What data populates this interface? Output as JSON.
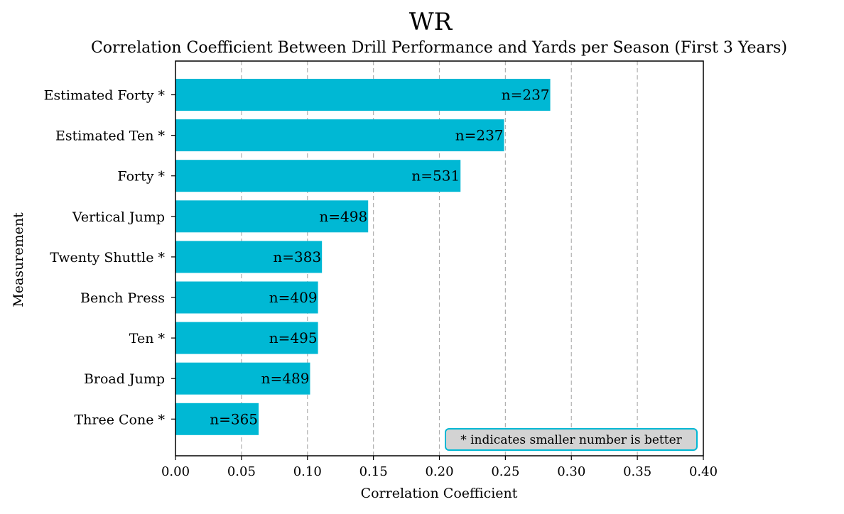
{
  "chart_data": {
    "type": "bar",
    "orientation": "horizontal",
    "title": "WR",
    "subtitle": "Correlation Coefficient Between Drill Performance and Yards per Season (First 3 Years)",
    "xlabel": "Correlation Coefficient",
    "ylabel": "Measurement",
    "xlim": [
      0,
      0.4
    ],
    "xticks": [
      "0.00",
      "0.05",
      "0.10",
      "0.15",
      "0.20",
      "0.25",
      "0.30",
      "0.35",
      "0.40"
    ],
    "xtick_values": [
      0,
      0.05,
      0.1,
      0.15,
      0.2,
      0.25,
      0.3,
      0.35,
      0.4
    ],
    "grid": "x-dashed",
    "bar_color": "#00b8d4",
    "categories": [
      "Estimated Forty *",
      "Estimated Ten *",
      "Forty *",
      "Vertical Jump",
      "Twenty Shuttle *",
      "Bench Press",
      "Ten *",
      "Broad Jump",
      "Three Cone *"
    ],
    "values": [
      0.284,
      0.249,
      0.216,
      0.146,
      0.111,
      0.108,
      0.108,
      0.102,
      0.063
    ],
    "labels": [
      "n=237",
      "n=237",
      "n=531",
      "n=498",
      "n=383",
      "n=409",
      "n=495",
      "n=489",
      "n=365"
    ],
    "annotation": "* indicates smaller number is better",
    "annotation_position": "bottom-right"
  }
}
